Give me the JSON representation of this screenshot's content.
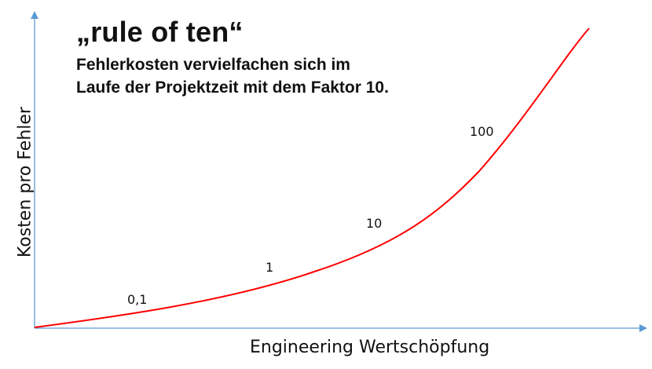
{
  "title": "„rule of ten“",
  "subtitle": [
    "Fehlerkosten vervielfachen sich im",
    "Laufe der Projektzeit mit dem Faktor 10."
  ],
  "x_axis_label": "Engineering Wertschöpfung",
  "y_axis_label": "Kosten pro Fehler",
  "point_labels": [
    "0,1",
    "1",
    "10",
    "100"
  ],
  "colors": {
    "axis": "#5b9bd5",
    "curve": "#ff0000",
    "text": "#111111"
  },
  "curve": "exponential"
}
